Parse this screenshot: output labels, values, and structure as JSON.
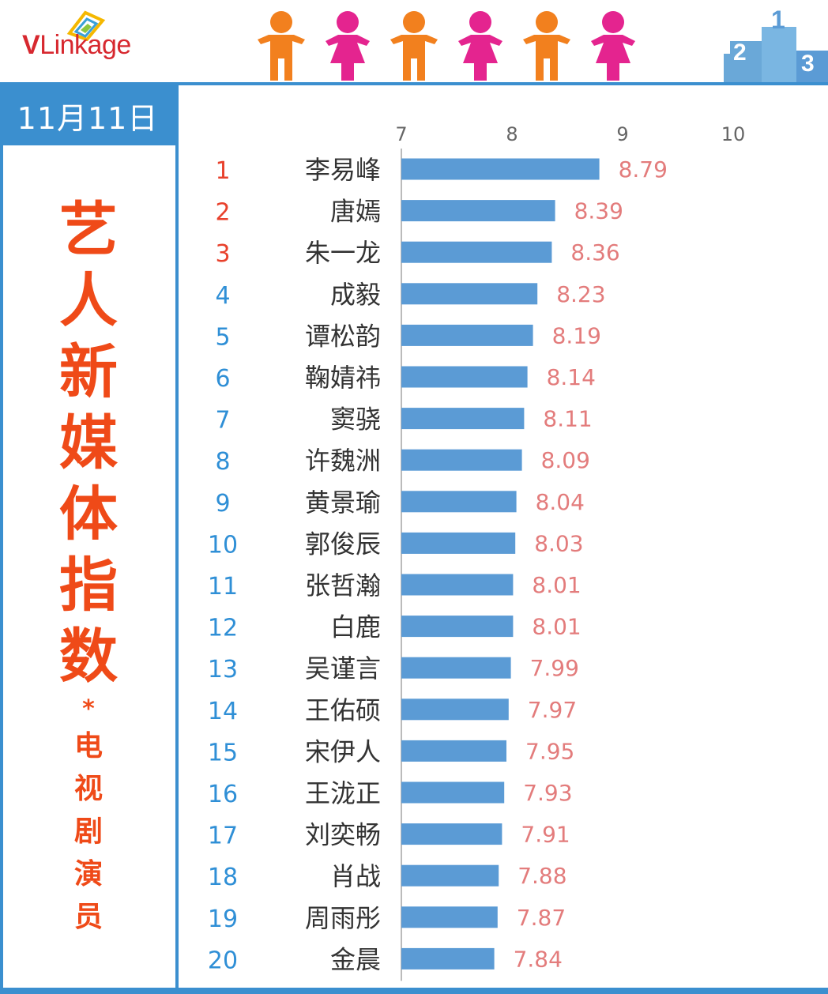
{
  "logo": {
    "brand_v": "V",
    "brand_rest": "Linkage"
  },
  "date_label": "11月11日",
  "title_chars": [
    "艺",
    "人",
    "新",
    "媒",
    "体",
    "指",
    "数"
  ],
  "title_star": "*",
  "subtitle_chars": [
    "电",
    "视",
    "剧",
    "演",
    "员"
  ],
  "colors": {
    "accent": "#3b8fcf",
    "bar": "#5b9bd5",
    "title": "#ef4a18",
    "rank_top": "#e8412c",
    "rank_other": "#2f8fd6",
    "value": "#e37c7c",
    "person_orange": "#f2801e",
    "person_pink": "#e4248f"
  },
  "chart_data": {
    "type": "bar",
    "orientation": "horizontal",
    "x_ticks": [
      7,
      8,
      9,
      10
    ],
    "xlim": [
      7,
      10
    ],
    "ranks": [
      "1",
      "2",
      "3",
      "4",
      "5",
      "6",
      "7",
      "8",
      "9",
      "10",
      "11",
      "12",
      "13",
      "14",
      "15",
      "16",
      "17",
      "18",
      "19",
      "20"
    ],
    "categories": [
      "李易峰",
      "唐嫣",
      "朱一龙",
      "成毅",
      "谭松韵",
      "鞠婧祎",
      "窦骁",
      "许魏洲",
      "黄景瑜",
      "郭俊辰",
      "张哲瀚",
      "白鹿",
      "吴谨言",
      "王佑硕",
      "宋伊人",
      "王泷正",
      "刘奕畅",
      "肖战",
      "周雨彤",
      "金晨"
    ],
    "values": [
      8.79,
      8.39,
      8.36,
      8.23,
      8.19,
      8.14,
      8.11,
      8.09,
      8.04,
      8.03,
      8.01,
      8.01,
      7.99,
      7.97,
      7.95,
      7.93,
      7.91,
      7.88,
      7.87,
      7.84
    ],
    "value_labels": [
      "8.79",
      "8.39",
      "8.36",
      "8.23",
      "8.19",
      "8.14",
      "8.11",
      "8.09",
      "8.04",
      "8.03",
      "8.01",
      "8.01",
      "7.99",
      "7.97",
      "7.95",
      "7.93",
      "7.91",
      "7.88",
      "7.87",
      "7.84"
    ]
  }
}
